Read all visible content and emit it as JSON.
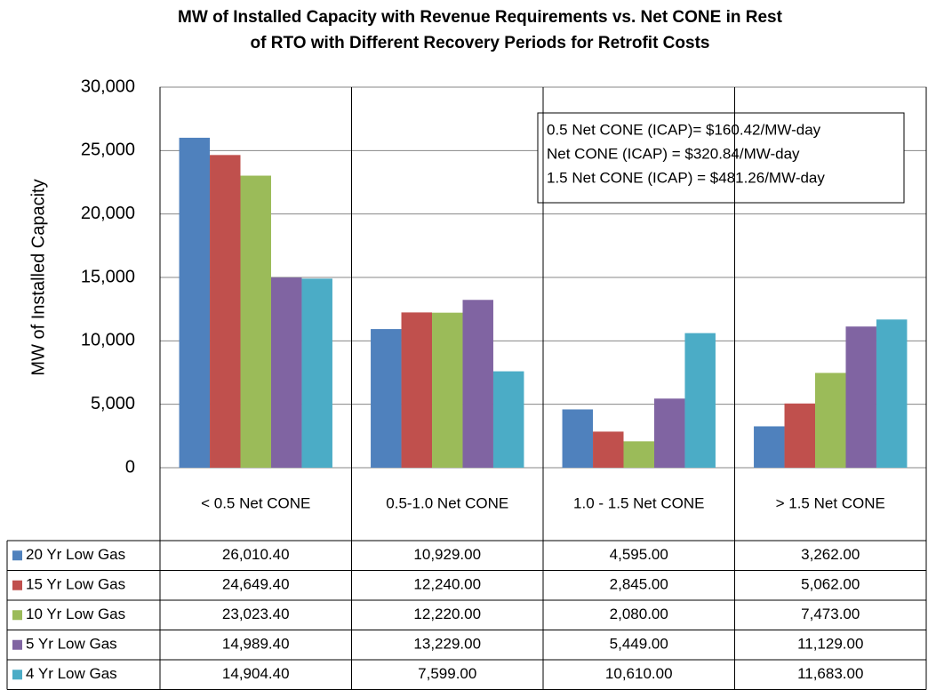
{
  "chart_data": {
    "type": "bar",
    "title": "MW of Installed Capacity with Revenue Requirements vs. Net CONE in Rest",
    "subtitle": "of RTO with Different Recovery Periods for Retrofit Costs",
    "y_label": "MW of Installed Capacity",
    "annotations": [
      "0.5 Net CONE (ICAP)= $160.42/MW-day",
      "Net CONE (ICAP) = $320.84/MW-day",
      "1.5 Net CONE (ICAP) = $481.26/MW-day"
    ],
    "categories": [
      "< 0.5 Net CONE",
      "0.5-1.0 Net CONE",
      "1.0 - 1.5 Net CONE",
      "> 1.5 Net CONE"
    ],
    "series": [
      {
        "name": "20 Yr Low Gas",
        "color": "#4f81bd",
        "values": [
          26010.4,
          10929,
          4595,
          3262
        ],
        "value_labels": [
          "26,010.40",
          "10,929.00",
          "4,595.00",
          "3,262.00"
        ]
      },
      {
        "name": "15 Yr Low Gas",
        "color": "#c0504d",
        "values": [
          24649.4,
          12240,
          2845,
          5062
        ],
        "value_labels": [
          "24,649.40",
          "12,240.00",
          "2,845.00",
          "5,062.00"
        ]
      },
      {
        "name": "10 Yr Low Gas",
        "color": "#9bbb59",
        "values": [
          23023.4,
          12220,
          2080,
          7473
        ],
        "value_labels": [
          "23,023.40",
          "12,220.00",
          "2,080.00",
          "7,473.00"
        ]
      },
      {
        "name": "5 Yr Low Gas",
        "color": "#8064a2",
        "values": [
          14989.4,
          13229,
          5449,
          11129
        ],
        "value_labels": [
          "14,989.40",
          "13,229.00",
          "5,449.00",
          "11,129.00"
        ]
      },
      {
        "name": "4 Yr Low Gas",
        "color": "#4bacc6",
        "values": [
          14904.4,
          7599,
          10610,
          11683
        ],
        "value_labels": [
          "14,904.40",
          "7,599.00",
          "10,610.00",
          "11,683.00"
        ]
      }
    ],
    "ylim": [
      0,
      30000
    ],
    "yticks": [
      0,
      {
        "value": 5000,
        "label": "5,000"
      },
      {
        "value": 10000,
        "label": "10,000"
      },
      {
        "value": 15000,
        "label": "15,000"
      },
      {
        "value": 20000,
        "label": "20,000"
      },
      {
        "value": 25000,
        "label": "25,000"
      },
      {
        "value": 30000,
        "label": "30,000"
      }
    ],
    "grid": true
  }
}
